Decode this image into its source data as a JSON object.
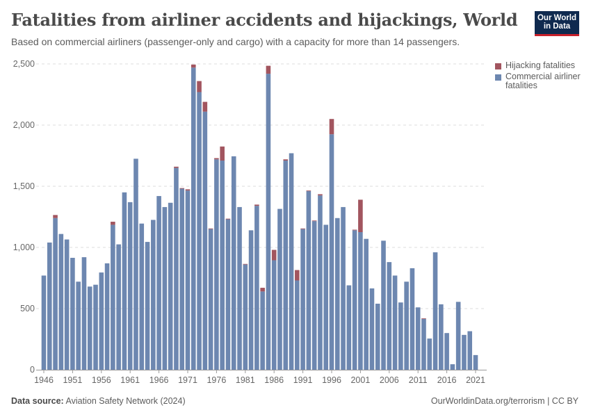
{
  "header": {
    "title": "Fatalities from airliner accidents and hijackings, World",
    "subtitle": "Based on commercial airliners (passenger-only and cargo) with a capacity for more than 14 passengers.",
    "logo_text": "Our World in Data"
  },
  "footer": {
    "source_label": "Data source:",
    "source_value": "Aviation Safety Network (2024)",
    "credit": "OurWorldinData.org/terrorism | CC BY"
  },
  "colors": {
    "hijacking": "#a2555f",
    "commercial": "#6d87b0",
    "logo_bg": "#0f2a4f",
    "logo_accent": "#c8202b"
  },
  "chart_data": {
    "type": "bar",
    "stacked": true,
    "x_tick_labels": [
      "1946",
      "1951",
      "1956",
      "1961",
      "1966",
      "1971",
      "1976",
      "1981",
      "1986",
      "1991",
      "1996",
      "2001",
      "2006",
      "2011",
      "2016",
      "2021"
    ],
    "y_tick_labels": [
      "0",
      "500",
      "1,000",
      "1,500",
      "2,000",
      "2,500"
    ],
    "ylim": [
      0,
      2500
    ],
    "grid": "horizontal dashed",
    "legend_placement": "right",
    "categories": [
      1946,
      1947,
      1948,
      1949,
      1950,
      1951,
      1952,
      1953,
      1954,
      1955,
      1956,
      1957,
      1958,
      1959,
      1960,
      1961,
      1962,
      1963,
      1964,
      1965,
      1966,
      1967,
      1968,
      1969,
      1970,
      1971,
      1972,
      1973,
      1974,
      1975,
      1976,
      1977,
      1978,
      1979,
      1980,
      1981,
      1982,
      1983,
      1984,
      1985,
      1986,
      1987,
      1988,
      1989,
      1990,
      1991,
      1992,
      1993,
      1994,
      1995,
      1996,
      1997,
      1998,
      1999,
      2000,
      2001,
      2002,
      2003,
      2004,
      2005,
      2006,
      2007,
      2008,
      2009,
      2010,
      2011,
      2012,
      2013,
      2014,
      2015,
      2016,
      2017,
      2018,
      2019,
      2020,
      2021
    ],
    "series": [
      {
        "name": "Commercial airliner fatalities",
        "values": [
          770,
          1040,
          1240,
          1110,
          1065,
          915,
          720,
          920,
          680,
          695,
          795,
          870,
          1185,
          1025,
          1450,
          1370,
          1725,
          1195,
          1045,
          1225,
          1420,
          1330,
          1365,
          1650,
          1480,
          1465,
          2470,
          2270,
          2110,
          1150,
          1720,
          1710,
          1230,
          1745,
          1330,
          860,
          1140,
          1340,
          640,
          2420,
          895,
          1315,
          1710,
          1770,
          730,
          1150,
          1460,
          1215,
          1425,
          1185,
          1925,
          1240,
          1330,
          690,
          1140,
          1125,
          1070,
          665,
          540,
          1055,
          880,
          770,
          550,
          720,
          830,
          510,
          415,
          255,
          960,
          535,
          300,
          45,
          555,
          285,
          315,
          120
        ]
      },
      {
        "name": "Hijacking fatalities",
        "values": [
          0,
          0,
          25,
          0,
          0,
          0,
          0,
          0,
          0,
          0,
          0,
          0,
          25,
          0,
          0,
          0,
          0,
          0,
          0,
          0,
          0,
          0,
          0,
          10,
          5,
          10,
          25,
          90,
          80,
          5,
          10,
          115,
          5,
          0,
          0,
          5,
          0,
          10,
          30,
          65,
          85,
          0,
          10,
          0,
          85,
          5,
          5,
          5,
          10,
          0,
          125,
          0,
          0,
          0,
          5,
          265,
          0,
          0,
          0,
          0,
          0,
          0,
          0,
          0,
          0,
          0,
          5,
          0,
          0,
          0,
          0,
          0,
          0,
          0,
          0,
          0
        ]
      }
    ]
  }
}
